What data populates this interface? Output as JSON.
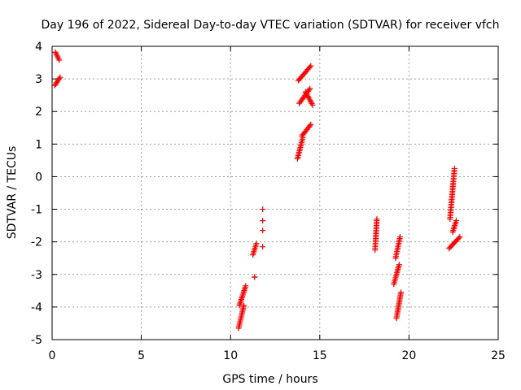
{
  "chart_data": {
    "type": "scatter",
    "title": "Day 196 of 2022, Sidereal Day-to-day VTEC variation (SDTVAR) for receiver vfch",
    "xlabel": "GPS time / hours",
    "ylabel": "SDTVAR / TECUs",
    "xlim": [
      0,
      25
    ],
    "ylim": [
      -5,
      4
    ],
    "xticks": [
      0,
      5,
      10,
      15,
      20,
      25
    ],
    "yticks": [
      -5,
      -4,
      -3,
      -2,
      -1,
      0,
      1,
      2,
      3,
      4
    ],
    "grid": true,
    "marker": "+",
    "colors": {
      "points": "#ff0000"
    },
    "segments": [
      {
        "x": [
          0.18,
          0.4
        ],
        "y": [
          3.82,
          3.58
        ]
      },
      {
        "x": [
          0.15,
          0.45
        ],
        "y": [
          2.8,
          3.05
        ]
      },
      {
        "x": [
          10.45,
          10.75
        ],
        "y": [
          -4.65,
          -3.95
        ]
      },
      {
        "x": [
          10.5,
          10.85
        ],
        "y": [
          -3.95,
          -3.35
        ]
      },
      {
        "x": [
          11.25,
          11.45
        ],
        "y": [
          -2.4,
          -2.05
        ]
      },
      {
        "x": [
          11.35,
          11.35
        ],
        "y": [
          -3.08,
          -3.08
        ]
      },
      {
        "x": [
          13.75,
          14.05
        ],
        "y": [
          0.55,
          1.2
        ]
      },
      {
        "x": [
          14.0,
          14.5
        ],
        "y": [
          1.25,
          1.6
        ]
      },
      {
        "x": [
          13.85,
          14.45
        ],
        "y": [
          2.25,
          2.7
        ]
      },
      {
        "x": [
          13.8,
          14.5
        ],
        "y": [
          2.95,
          3.4
        ]
      },
      {
        "x": [
          14.2,
          14.6
        ],
        "y": [
          2.6,
          2.2
        ]
      },
      {
        "x": [
          18.1,
          18.2
        ],
        "y": [
          -2.25,
          -1.3
        ]
      },
      {
        "x": [
          19.15,
          19.45
        ],
        "y": [
          -3.3,
          -2.7
        ]
      },
      {
        "x": [
          19.25,
          19.5
        ],
        "y": [
          -2.5,
          -1.85
        ]
      },
      {
        "x": [
          19.3,
          19.55
        ],
        "y": [
          -4.35,
          -3.55
        ]
      },
      {
        "x": [
          22.3,
          22.55
        ],
        "y": [
          -1.3,
          0.25
        ]
      },
      {
        "x": [
          22.25,
          22.85
        ],
        "y": [
          -2.2,
          -1.85
        ]
      },
      {
        "x": [
          22.45,
          22.65
        ],
        "y": [
          -1.7,
          -1.35
        ]
      }
    ],
    "isolated_points": [
      {
        "x": 11.8,
        "y": -1.0
      },
      {
        "x": 11.8,
        "y": -1.35
      },
      {
        "x": 11.8,
        "y": -1.65
      },
      {
        "x": 11.8,
        "y": -2.15
      }
    ]
  }
}
